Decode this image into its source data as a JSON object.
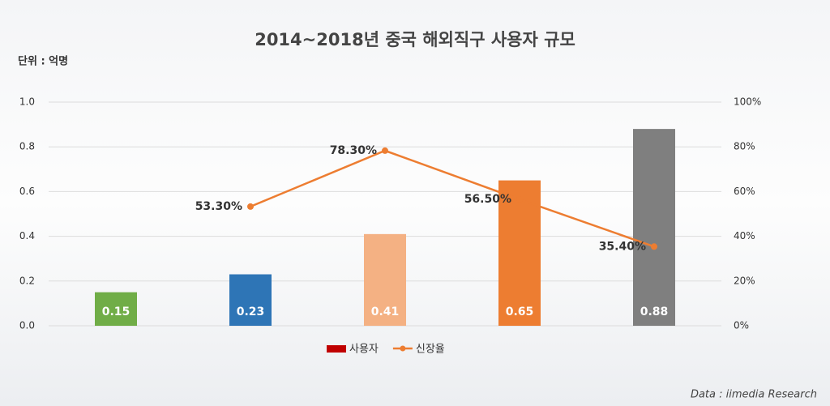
{
  "chart_data": {
    "type": "bar",
    "title": "2014~2018년 중국 해외직구 사용자 규모",
    "unit_label": "단위 : 억명",
    "source": "Data : iimedia Research",
    "categories": [
      null,
      null,
      null,
      null,
      null
    ],
    "series": [
      {
        "name": "사용자",
        "type": "bar",
        "color": "#c00000",
        "colors": [
          "#70ad47",
          "#2e75b6",
          "#f4b183",
          "#ed7d31",
          "#7f7f7f"
        ],
        "values": [
          0.15,
          0.23,
          0.41,
          0.65,
          0.88
        ]
      },
      {
        "name": "신장율",
        "type": "line",
        "axis": "y2",
        "color": "#ed7d31",
        "values": [
          null,
          53.3,
          78.3,
          56.5,
          35.4
        ],
        "value_labels": [
          null,
          "53.30%",
          "78.30%",
          "56.50%",
          "35.40%"
        ]
      }
    ],
    "ylim": [
      0,
      1
    ],
    "yticks": [
      {
        "value": 0,
        "label": "0.0"
      },
      0.2,
      0.4,
      0.6,
      0.8,
      {
        "value": 1,
        "label": "1.0"
      }
    ],
    "y2lim": [
      0,
      100
    ],
    "y2ticks": [
      {
        "value": 0,
        "label": "0%"
      },
      {
        "value": 20,
        "label": "20%"
      },
      {
        "value": 40,
        "label": "40%"
      },
      {
        "value": 60,
        "label": "60%"
      },
      {
        "value": 80,
        "label": "80%"
      },
      {
        "value": 100,
        "label": "100%"
      }
    ],
    "grid": true,
    "legend": "bottom"
  }
}
